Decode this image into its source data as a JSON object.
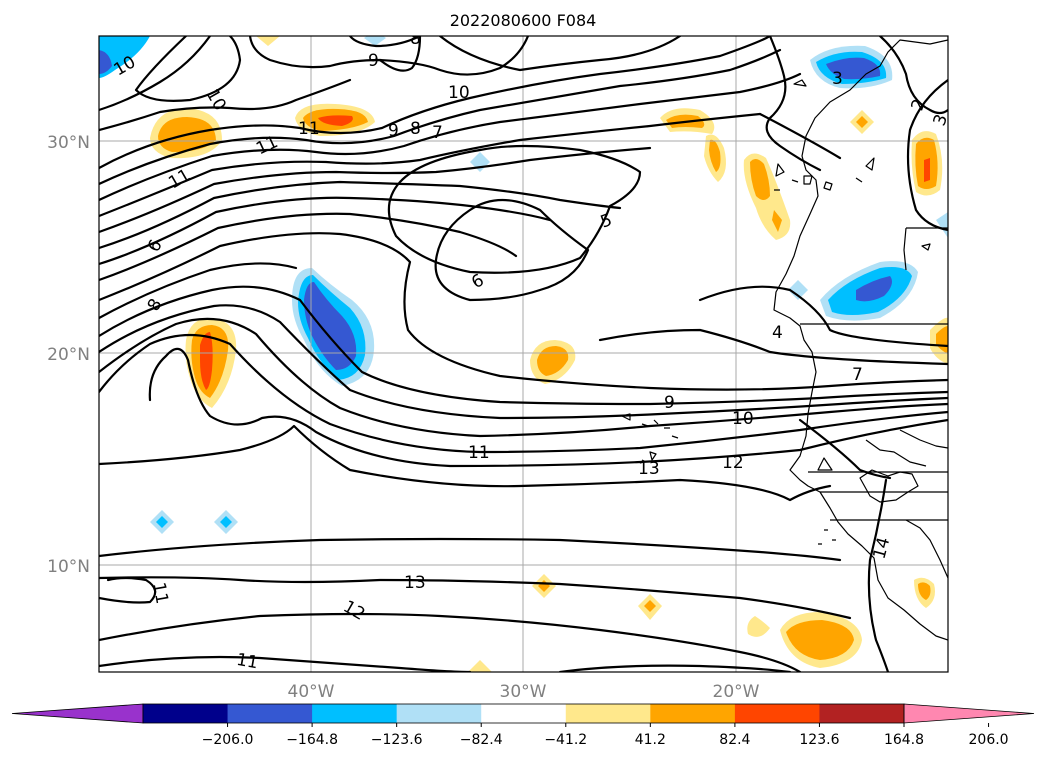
{
  "map": {
    "title": "2022080600 F084",
    "lat_labels": [
      "30°N",
      "20°N",
      "10°N"
    ],
    "lon_labels": [
      "40°W",
      "30°W",
      "20°W"
    ],
    "contour_labels": [
      "10",
      "10",
      "9",
      "8",
      "10",
      "11",
      "9",
      "8",
      "7",
      "11",
      "11",
      "6",
      "8",
      "5",
      "6",
      "4",
      "7",
      "9",
      "10",
      "11",
      "12",
      "13",
      "14",
      "13",
      "12",
      "11",
      "11",
      "3",
      "2",
      "3"
    ],
    "colorbar": {
      "ticks": [
        "−206.0",
        "−164.8",
        "−123.6",
        "−82.4",
        "−41.2",
        "41.2",
        "82.4",
        "123.6",
        "164.8",
        "206.0"
      ],
      "colors": [
        "#9932cc",
        "#00008b",
        "#3558d2",
        "#00bfff",
        "#b0e0f6",
        "#ffffff",
        "#ffe88c",
        "#ffa500",
        "#ff4500",
        "#b22222",
        "#ff87b0"
      ]
    }
  }
}
